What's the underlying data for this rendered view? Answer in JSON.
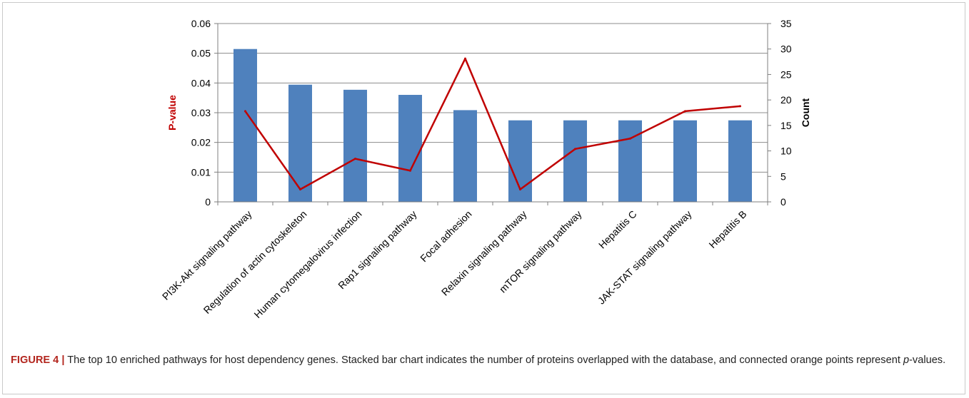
{
  "chart_data": {
    "type": "bar",
    "categories": [
      "PI3K-Akt signaling pathway",
      "Regulation of actin cytoskeleton",
      "Human cytomegalovirus infection",
      "Rap1 signaling pathway",
      "Focal adhesion",
      "Relaxin signaling pathway",
      "mTOR signaling pathway",
      "Hepatitis C",
      "JAK-STAT signaling pathway",
      "Hepatitis B"
    ],
    "series": [
      {
        "name": "Count",
        "type": "bar",
        "axis": "right",
        "values": [
          30,
          23,
          22,
          21,
          18,
          16,
          16,
          16,
          16,
          16
        ]
      },
      {
        "name": "P-value",
        "type": "line",
        "axis": "left",
        "values": [
          0.0305,
          0.0042,
          0.0145,
          0.0105,
          0.0482,
          0.0042,
          0.0178,
          0.0213,
          0.0305,
          0.0322
        ]
      }
    ],
    "y_left": {
      "label": "P-value",
      "range": [
        0,
        0.06
      ],
      "ticks": [
        "0",
        "0.01",
        "0.02",
        "0.03",
        "0.04",
        "0.05",
        "0.06"
      ]
    },
    "y_right": {
      "label": "Count",
      "range": [
        0,
        35
      ],
      "ticks": [
        "0",
        "5",
        "10",
        "15",
        "20",
        "25",
        "30",
        "35"
      ]
    },
    "grid": true,
    "legend": "none",
    "colors": {
      "bar": "#4f81bd",
      "line": "#c00000",
      "grid": "#8c8c8c",
      "axis_label_left": "#c00000"
    }
  },
  "caption": {
    "label": "FIGURE 4 |",
    "text_before": " The top 10 enriched pathways for host dependency genes. Stacked bar chart indicates the number of proteins overlapped with the database, and connected orange points represent ",
    "italic": "p",
    "text_after": "-values."
  }
}
